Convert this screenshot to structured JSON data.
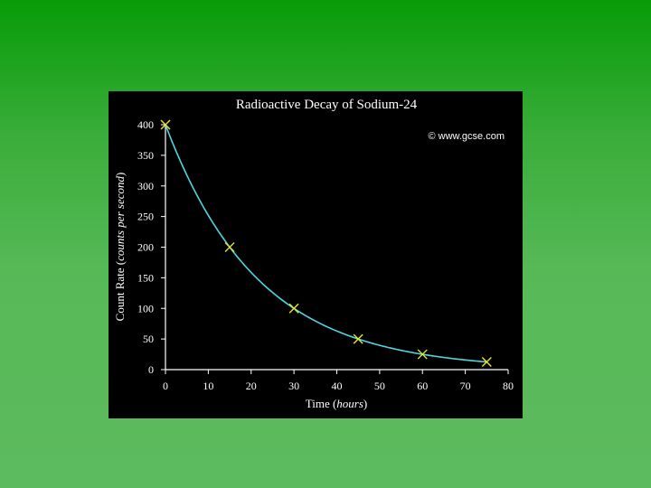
{
  "chart_data": {
    "type": "line",
    "title": "Radioactive Decay of Sodium-24",
    "credit": "© www.gcse.com",
    "xlabel_main": "Time (",
    "xlabel_italic": "hours",
    "xlabel_end": ")",
    "ylabel_main": "Count Rate (",
    "ylabel_italic": "counts per second",
    "ylabel_end": ")",
    "xlim": [
      0,
      80
    ],
    "ylim": [
      0,
      400
    ],
    "xticks": [
      0,
      10,
      20,
      30,
      40,
      50,
      60,
      70,
      80
    ],
    "yticks": [
      0,
      50,
      100,
      150,
      200,
      250,
      300,
      350,
      400
    ],
    "series": [
      {
        "x": [
          0,
          15,
          30,
          45,
          60,
          75
        ],
        "values": [
          400,
          200,
          100,
          50,
          25,
          12.5
        ]
      }
    ],
    "curve_x_end": 75,
    "half_life": 15,
    "curve_color": "#4fd6e0",
    "marker_color": "#e6e62a"
  }
}
